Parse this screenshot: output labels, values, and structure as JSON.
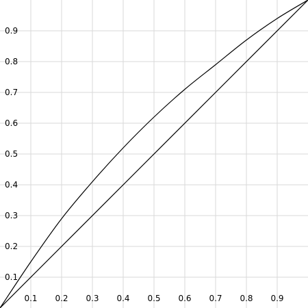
{
  "chart_data": {
    "type": "line",
    "title": "",
    "xlabel": "",
    "ylabel": "",
    "xlim": [
      0,
      1
    ],
    "ylim": [
      0,
      1
    ],
    "grid": true,
    "x_ticks": [
      "0.1",
      "0.2",
      "0.3",
      "0.4",
      "0.5",
      "0.6",
      "0.7",
      "0.8",
      "0.9"
    ],
    "y_ticks": [
      "0.1",
      "0.2",
      "0.3",
      "0.4",
      "0.5",
      "0.6",
      "0.7",
      "0.8",
      "0.9"
    ],
    "series": [
      {
        "x": [
          0,
          0.1,
          0.2,
          0.3,
          0.4,
          0.5,
          0.6,
          0.7,
          0.8,
          0.9,
          1.0
        ],
        "y": [
          0,
          0.15,
          0.29,
          0.41,
          0.52,
          0.62,
          0.71,
          0.79,
          0.87,
          0.94,
          1.0
        ],
        "color": "#000000"
      },
      {
        "x": [
          0,
          1.0
        ],
        "y": [
          0,
          1.0
        ],
        "color": "#000000"
      }
    ]
  }
}
